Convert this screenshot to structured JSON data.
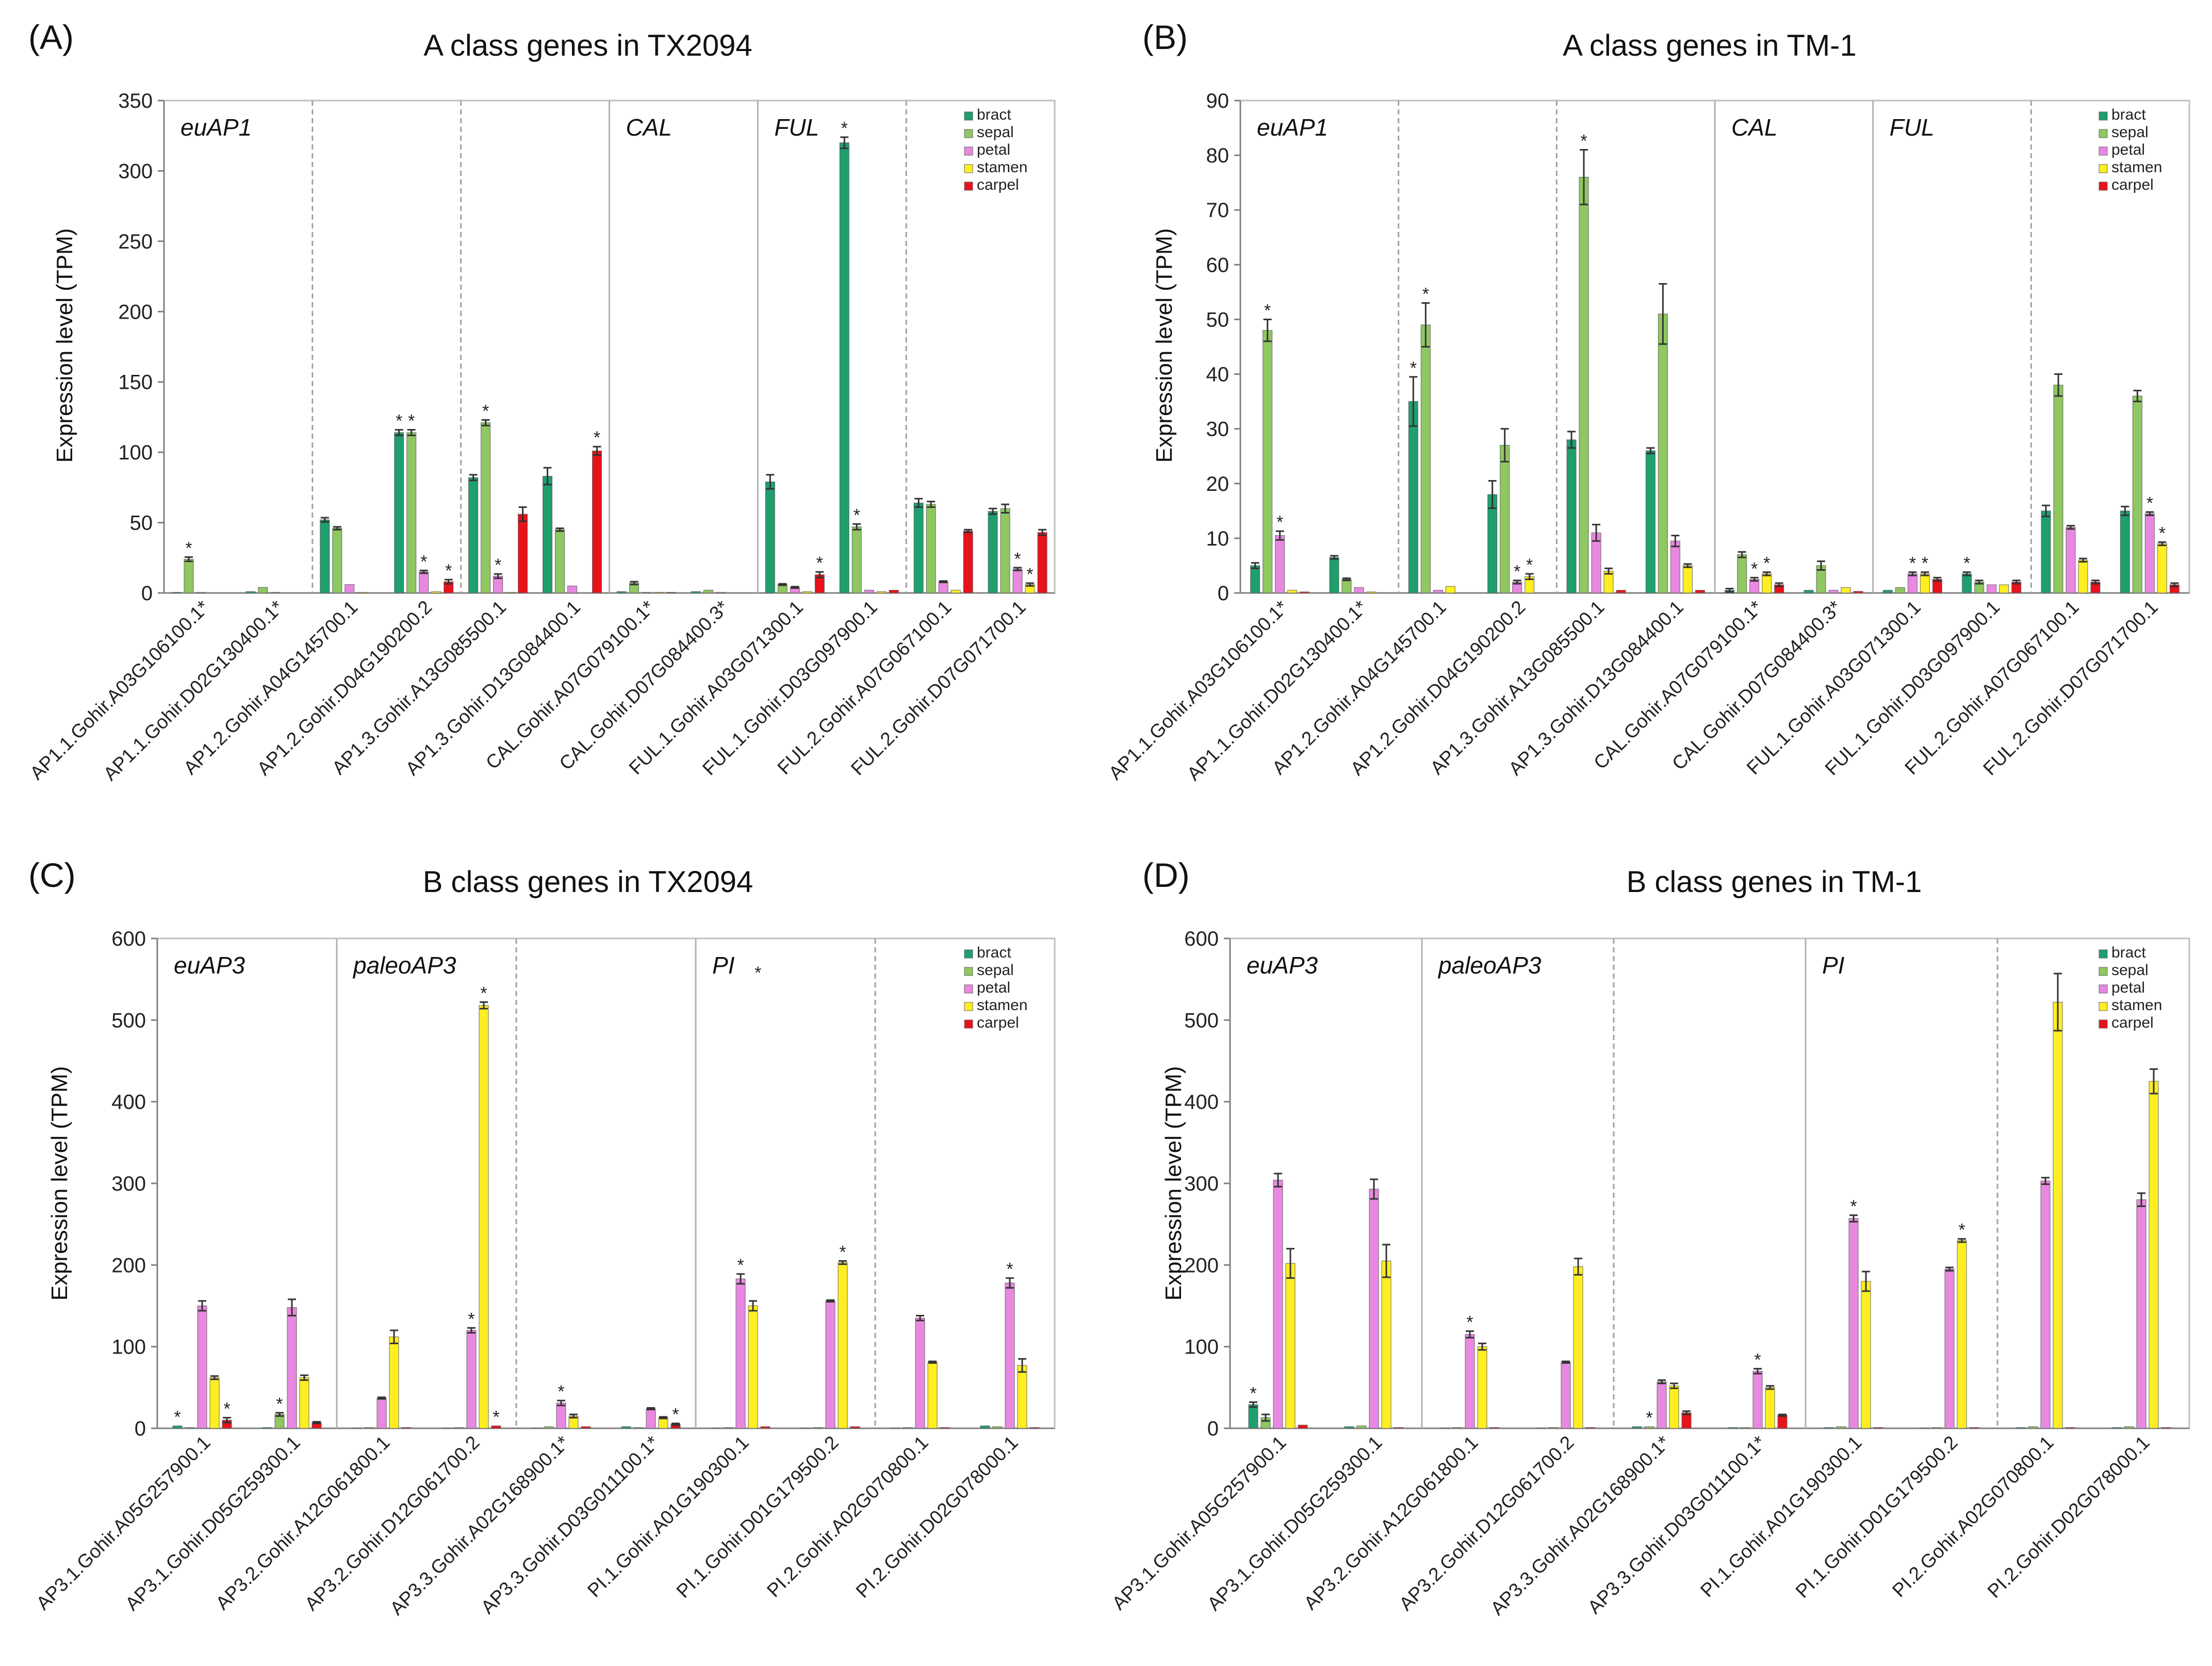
{
  "colors": {
    "bract": "#1f9e6e",
    "sepal": "#8fc760",
    "petal": "#e888e0",
    "stamen": "#ffee22",
    "carpel": "#e8121a"
  },
  "chart_data": [
    {
      "type": "bar",
      "panel": "(A)",
      "title": "A class genes in TX2094",
      "ylabel": "Expression level (TPM)",
      "ylim": [
        0,
        350
      ],
      "yticks": [
        0,
        50,
        100,
        150,
        200,
        250,
        300,
        350
      ],
      "series_names": [
        "bract",
        "sepal",
        "petal",
        "stamen",
        "carpel"
      ],
      "categories": [
        "AP1.1.Gohir.A03G106100.1*",
        "AP1.1.Gohir.D02G130400.1*",
        "AP1.2.Gohir.A04G145700.1",
        "AP1.2.Gohir.D04G190200.2",
        "AP1.3.Gohir.A13G085500.1",
        "AP1.3.Gohir.D13G084400.1",
        "CAL.Gohir.A07G079100.1*",
        "CAL.Gohir.D07G084400.3*",
        "FUL.1.Gohir.A03G071300.1",
        "FUL.1.Gohir.D03G097900.1",
        "FUL.2.Gohir.A07G067100.1",
        "FUL.2.Gohir.D07G071700.1"
      ],
      "values": [
        [
          0.5,
          24,
          0.5,
          0,
          0
        ],
        [
          1,
          4,
          0.5,
          0,
          0
        ],
        [
          52,
          46,
          6,
          0.5,
          0
        ],
        [
          114,
          114,
          15,
          1,
          8
        ],
        [
          82,
          121,
          12,
          0.5,
          56
        ],
        [
          83,
          45,
          5,
          0,
          101
        ],
        [
          1,
          7,
          0.5,
          0.5,
          0.5
        ],
        [
          1,
          2,
          0.5,
          0,
          0
        ],
        [
          79,
          6,
          4,
          1,
          13
        ],
        [
          320,
          47,
          2,
          1,
          2
        ],
        [
          64,
          63,
          8,
          2,
          44
        ],
        [
          58,
          60,
          17,
          6,
          43
        ]
      ],
      "errors": [
        [
          0,
          1.5,
          0,
          0,
          0
        ],
        [
          0,
          0,
          0,
          0,
          0
        ],
        [
          1.5,
          1,
          0,
          0,
          0
        ],
        [
          2,
          2,
          1,
          0,
          1.5
        ],
        [
          2,
          2,
          1.5,
          0,
          5
        ],
        [
          6,
          1,
          0,
          0,
          3
        ],
        [
          0,
          1,
          0,
          0,
          0
        ],
        [
          0,
          0,
          0,
          0,
          0
        ],
        [
          5,
          0.5,
          0.5,
          0,
          2
        ],
        [
          4,
          2,
          0,
          0,
          0
        ],
        [
          3,
          2,
          0.5,
          0,
          1
        ],
        [
          2,
          3,
          1,
          1,
          2
        ]
      ],
      "stars": [
        [
          0,
          1,
          0,
          0,
          0
        ],
        [
          0,
          0,
          0,
          0,
          0
        ],
        [
          0,
          0,
          0,
          0,
          0
        ],
        [
          1,
          1,
          1,
          0,
          1
        ],
        [
          0,
          1,
          1,
          0,
          0
        ],
        [
          0,
          0,
          0,
          0,
          1
        ],
        [
          0,
          0,
          0,
          0,
          0
        ],
        [
          0,
          0,
          0,
          0,
          0
        ],
        [
          0,
          0,
          0,
          0,
          1
        ],
        [
          1,
          1,
          0,
          0,
          0
        ],
        [
          0,
          0,
          0,
          0,
          0
        ],
        [
          0,
          0,
          1,
          1,
          0
        ]
      ],
      "groups": [
        {
          "label": "euAP1",
          "start": 0,
          "end": 6,
          "label_star": ""
        },
        {
          "label": "CAL",
          "start": 6,
          "end": 8,
          "label_star": ""
        },
        {
          "label": "FUL",
          "start": 8,
          "end": 12,
          "label_star": ""
        }
      ],
      "separators": [
        {
          "after": 2,
          "style": "dashed"
        },
        {
          "after": 4,
          "style": "dashed"
        },
        {
          "after": 6,
          "style": "solid"
        },
        {
          "after": 8,
          "style": "solid"
        },
        {
          "after": 10,
          "style": "dashed"
        }
      ],
      "legend": "top-right"
    },
    {
      "type": "bar",
      "panel": "(B)",
      "title": "A class genes in TM-1",
      "ylabel": "Expression level (TPM)",
      "ylim": [
        0,
        90
      ],
      "yticks": [
        0,
        10,
        20,
        30,
        40,
        50,
        60,
        70,
        80,
        90
      ],
      "series_names": [
        "bract",
        "sepal",
        "petal",
        "stamen",
        "carpel"
      ],
      "categories": [
        "AP1.1.Gohir.A03G106100.1*",
        "AP1.1.Gohir.D02G130400.1*",
        "AP1.2.Gohir.A04G145700.1",
        "AP1.2.Gohir.D04G190200.2",
        "AP1.3.Gohir.A13G085500.1",
        "AP1.3.Gohir.D13G084400.1",
        "CAL.Gohir.A07G079100.1*",
        "CAL.Gohir.D07G084400.3*",
        "FUL.1.Gohir.A03G071300.1",
        "FUL.1.Gohir.D03G097900.1",
        "FUL.2.Gohir.A07G067100.1",
        "FUL.2.Gohir.D07G071700.1"
      ],
      "values": [
        [
          5,
          48,
          10.5,
          0.5,
          0.2
        ],
        [
          6.5,
          2.5,
          1,
          0.2,
          0
        ],
        [
          35,
          49,
          0.5,
          1.2,
          0
        ],
        [
          18,
          27,
          2,
          3,
          0
        ],
        [
          28,
          76,
          11,
          4,
          0.5
        ],
        [
          26,
          51,
          9.5,
          5,
          0.5
        ],
        [
          0.5,
          7,
          2.5,
          3.5,
          1.5
        ],
        [
          0.5,
          5,
          0.5,
          1,
          0.3
        ],
        [
          0.5,
          1,
          3.5,
          3.5,
          2.5
        ],
        [
          3.5,
          2,
          1.5,
          1.5,
          2
        ],
        [
          15,
          38,
          12,
          6,
          2
        ],
        [
          15,
          36,
          14.5,
          9,
          1.5
        ]
      ],
      "errors": [
        [
          0.5,
          2,
          0.8,
          0,
          0
        ],
        [
          0.3,
          0.2,
          0,
          0,
          0
        ],
        [
          4.5,
          4,
          0,
          0,
          0
        ],
        [
          2.5,
          3,
          0.3,
          0.5,
          0
        ],
        [
          1.5,
          5,
          1.5,
          0.5,
          0
        ],
        [
          0.5,
          5.5,
          1,
          0.3,
          0
        ],
        [
          0.3,
          0.5,
          0.3,
          0.3,
          0.3
        ],
        [
          0,
          0.8,
          0,
          0,
          0
        ],
        [
          0,
          0,
          0.3,
          0.3,
          0.3
        ],
        [
          0.3,
          0.3,
          0,
          0,
          0.3
        ],
        [
          1,
          2,
          0.3,
          0.3,
          0.3
        ],
        [
          0.8,
          1,
          0.3,
          0.3,
          0.3
        ]
      ],
      "stars": [
        [
          0,
          1,
          1,
          0,
          0
        ],
        [
          0,
          0,
          0,
          0,
          0
        ],
        [
          1,
          1,
          0,
          0,
          0
        ],
        [
          0,
          0,
          1,
          1,
          0
        ],
        [
          0,
          1,
          0,
          0,
          0
        ],
        [
          0,
          0,
          0,
          0,
          0
        ],
        [
          0,
          0,
          1,
          1,
          0
        ],
        [
          0,
          0,
          0,
          0,
          0
        ],
        [
          0,
          0,
          1,
          1,
          0
        ],
        [
          1,
          0,
          0,
          0,
          0
        ],
        [
          0,
          0,
          0,
          0,
          0
        ],
        [
          0,
          0,
          1,
          1,
          0
        ]
      ],
      "groups": [
        {
          "label": "euAP1",
          "start": 0,
          "end": 6,
          "label_star": ""
        },
        {
          "label": "CAL",
          "start": 6,
          "end": 8,
          "label_star": ""
        },
        {
          "label": "FUL",
          "start": 8,
          "end": 12,
          "label_star": ""
        }
      ],
      "separators": [
        {
          "after": 2,
          "style": "dashed"
        },
        {
          "after": 4,
          "style": "dashed"
        },
        {
          "after": 6,
          "style": "solid"
        },
        {
          "after": 8,
          "style": "solid"
        },
        {
          "after": 10,
          "style": "dashed"
        }
      ],
      "legend": "top-right"
    },
    {
      "type": "bar",
      "panel": "(C)",
      "title": "B class genes in TX2094",
      "ylabel": "Expression level (TPM)",
      "ylim": [
        0,
        600
      ],
      "yticks": [
        0,
        100,
        200,
        300,
        400,
        500,
        600
      ],
      "series_names": [
        "bract",
        "sepal",
        "petal",
        "stamen",
        "carpel"
      ],
      "categories": [
        "AP3.1.Gohir.A05G257900.1",
        "AP3.1.Gohir.D05G259300.1",
        "AP3.2.Gohir.A12G061800.1",
        "AP3.2.Gohir.D12G061700.2",
        "AP3.3.Gohir.A02G168900.1*",
        "AP3.3.Gohir.D03G011100.1*",
        "PI.1.Gohir.A01G190300.1",
        "PI.1.Gohir.D01G179500.2",
        "PI.2.Gohir.A02G070800.1",
        "PI.2.Gohir.D02G078000.1"
      ],
      "values": [
        [
          3,
          1,
          150,
          62,
          10
        ],
        [
          1,
          17,
          148,
          62,
          7
        ],
        [
          0.5,
          1,
          37,
          112,
          1
        ],
        [
          0.5,
          1,
          120,
          518,
          3
        ],
        [
          0.5,
          2,
          31,
          15,
          2
        ],
        [
          2,
          1,
          24,
          13,
          5
        ],
        [
          0.5,
          1,
          183,
          150,
          2
        ],
        [
          0.5,
          1,
          156,
          203,
          2
        ],
        [
          0.5,
          1,
          135,
          81,
          1
        ],
        [
          3,
          2,
          178,
          77,
          1
        ]
      ],
      "errors": [
        [
          0,
          0,
          6,
          2,
          3
        ],
        [
          0,
          2,
          10,
          3,
          1
        ],
        [
          0,
          0,
          1,
          8,
          0
        ],
        [
          0,
          0,
          3,
          4,
          0
        ],
        [
          0,
          0,
          3,
          2,
          0
        ],
        [
          0,
          0,
          1,
          1,
          1
        ],
        [
          0,
          0,
          6,
          6,
          0
        ],
        [
          0,
          0,
          1,
          2,
          0
        ],
        [
          0,
          0,
          3,
          1,
          0
        ],
        [
          0,
          0,
          6,
          8,
          0
        ]
      ],
      "stars": [
        [
          1,
          0,
          0,
          0,
          1
        ],
        [
          0,
          1,
          0,
          0,
          0
        ],
        [
          0,
          0,
          0,
          0,
          0
        ],
        [
          0,
          0,
          1,
          1,
          1
        ],
        [
          0,
          0,
          1,
          0,
          0
        ],
        [
          0,
          0,
          0,
          0,
          1
        ],
        [
          0,
          0,
          1,
          0,
          0
        ],
        [
          0,
          0,
          0,
          1,
          0
        ],
        [
          0,
          0,
          0,
          0,
          0
        ],
        [
          0,
          0,
          1,
          0,
          0
        ]
      ],
      "groups": [
        {
          "label": "euAP3",
          "start": 0,
          "end": 2,
          "label_star": ""
        },
        {
          "label": "paleoAP3",
          "start": 2,
          "end": 6,
          "label_star": ""
        },
        {
          "label": "PI",
          "start": 6,
          "end": 10,
          "label_star": "*"
        }
      ],
      "separators": [
        {
          "after": 2,
          "style": "solid"
        },
        {
          "after": 4,
          "style": "dashed"
        },
        {
          "after": 6,
          "style": "solid"
        },
        {
          "after": 8,
          "style": "dashed"
        }
      ],
      "legend": "top-right"
    },
    {
      "type": "bar",
      "panel": "(D)",
      "title": "B class genes in TM-1",
      "ylabel": "Expression level (TPM)",
      "ylim": [
        0,
        600
      ],
      "yticks": [
        0,
        100,
        200,
        300,
        400,
        500,
        600
      ],
      "series_names": [
        "bract",
        "sepal",
        "petal",
        "stamen",
        "carpel"
      ],
      "categories": [
        "AP3.1.Gohir.A05G257900.1",
        "AP3.1.Gohir.D05G259300.1",
        "AP3.2.Gohir.A12G061800.1",
        "AP3.2.Gohir.D12G061700.2",
        "AP3.3.Gohir.A02G168900.1*",
        "AP3.3.Gohir.D03G011100.1*",
        "PI.1.Gohir.A01G190300.1",
        "PI.1.Gohir.D01G179500.2",
        "PI.2.Gohir.A02G070800.1",
        "PI.2.Gohir.D02G078000.1"
      ],
      "values": [
        [
          29,
          13,
          304,
          202,
          4
        ],
        [
          2,
          3,
          293,
          205,
          1
        ],
        [
          0.5,
          1,
          115,
          100,
          1
        ],
        [
          0.5,
          1,
          81,
          198,
          1
        ],
        [
          2,
          2,
          57,
          52,
          19
        ],
        [
          1,
          1,
          70,
          50,
          16
        ],
        [
          1,
          2,
          257,
          180,
          1
        ],
        [
          0.5,
          1,
          195,
          230,
          1
        ],
        [
          1,
          2,
          303,
          522,
          1
        ],
        [
          1,
          2,
          280,
          425,
          1
        ]
      ],
      "errors": [
        [
          3,
          4,
          8,
          18,
          0
        ],
        [
          0,
          0,
          12,
          20,
          0
        ],
        [
          0,
          0,
          4,
          4,
          0
        ],
        [
          0,
          0,
          1,
          10,
          0
        ],
        [
          0,
          0,
          2,
          3,
          2
        ],
        [
          0,
          0,
          3,
          2,
          1
        ],
        [
          0,
          0,
          4,
          12,
          0
        ],
        [
          0,
          0,
          2,
          2,
          0
        ],
        [
          0,
          0,
          4,
          35,
          0
        ],
        [
          0,
          0,
          8,
          15,
          0
        ]
      ],
      "stars": [
        [
          1,
          0,
          0,
          0,
          0
        ],
        [
          0,
          0,
          0,
          0,
          0
        ],
        [
          0,
          0,
          1,
          0,
          0
        ],
        [
          0,
          0,
          0,
          0,
          0
        ],
        [
          0,
          1,
          0,
          0,
          0
        ],
        [
          0,
          0,
          1,
          0,
          0
        ],
        [
          0,
          0,
          1,
          0,
          0
        ],
        [
          0,
          0,
          0,
          1,
          0
        ],
        [
          0,
          0,
          0,
          0,
          0
        ],
        [
          0,
          0,
          0,
          0,
          0
        ]
      ],
      "groups": [
        {
          "label": "euAP3",
          "start": 0,
          "end": 2,
          "label_star": ""
        },
        {
          "label": "paleoAP3",
          "start": 2,
          "end": 6,
          "label_star": ""
        },
        {
          "label": "PI",
          "start": 6,
          "end": 10,
          "label_star": ""
        }
      ],
      "separators": [
        {
          "after": 2,
          "style": "solid"
        },
        {
          "after": 4,
          "style": "dashed"
        },
        {
          "after": 6,
          "style": "solid"
        },
        {
          "after": 8,
          "style": "dashed"
        }
      ],
      "legend": "top-right"
    }
  ]
}
